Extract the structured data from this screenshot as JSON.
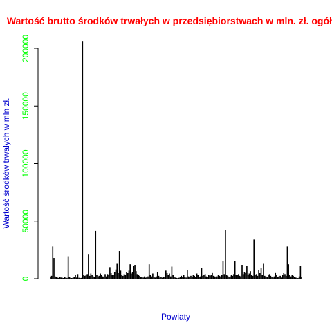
{
  "colors": {
    "title": "#ff0000",
    "axis_title": "#0000cd",
    "tick_labels": "#00ff00",
    "bars": "#000000"
  },
  "chart_data": {
    "type": "bar",
    "title": "Wartość brutto środków trwałych w przedsiębiorstwach w mln. zł. ogółem",
    "xlabel": "Powiaty",
    "ylabel": "Wartość środków trwałych w mln zł.",
    "ylim": [
      0,
      200000
    ],
    "yticks": [
      0,
      50000,
      100000,
      150000,
      200000
    ],
    "ytick_labels": [
      "0",
      "50000",
      "100000",
      "150000",
      "200000"
    ],
    "grid": false,
    "legend": "none",
    "series": [
      {
        "values": [
          1500,
          2500,
          28000,
          18000,
          2000,
          1200,
          900,
          700,
          1800,
          1000,
          800,
          600,
          1500,
          900,
          700,
          19500,
          1200,
          800,
          600,
          900,
          1500,
          3000,
          1000,
          4000,
          800,
          600,
          700,
          206500,
          3500,
          2500,
          3000,
          4000,
          21500,
          2500,
          4500,
          3000,
          2000,
          1500,
          41500,
          3500,
          2000,
          2500,
          4500,
          3000,
          2000,
          1500,
          4000,
          2000,
          4000,
          3000,
          10000,
          5000,
          3000,
          3500,
          6000,
          8000,
          13500,
          5000,
          24000,
          7000,
          3000,
          2500,
          4000,
          3500,
          6000,
          5000,
          7000,
          12500,
          4500,
          6000,
          11000,
          12000,
          6500,
          4000,
          3500,
          2500,
          1500,
          1200,
          1000,
          2000,
          900,
          1500,
          2000,
          12500,
          3000,
          2000,
          4500,
          1500,
          1000,
          2000,
          6000,
          2500,
          1000,
          1500,
          900,
          1200,
          1800,
          7000,
          5000,
          3000,
          4500,
          2000,
          10500,
          3000,
          1500,
          1000,
          700,
          500,
          800,
          1200,
          2500,
          1500,
          3000,
          1800,
          1000,
          7500,
          2000,
          1500,
          2500,
          1500,
          3500,
          2500,
          1800,
          4500,
          3000,
          1500,
          2000,
          9000,
          2500,
          3000,
          4000,
          2000,
          1500,
          3500,
          2500,
          3000,
          5500,
          2500,
          2000,
          1500,
          2000,
          3000,
          2500,
          2000,
          3500,
          15000,
          4000,
          42500,
          3000,
          2500,
          1500,
          2000,
          3000,
          2500,
          4000,
          15000,
          3500,
          3000,
          4000,
          2500,
          2000,
          12000,
          4000,
          6000,
          5000,
          11000,
          3500,
          4500,
          6500,
          3000,
          2500,
          34000,
          3500,
          4000,
          2500,
          7500,
          5000,
          9500,
          3500,
          13500,
          2500,
          2000,
          1500,
          3000,
          4000,
          2500,
          1500,
          1000,
          2000,
          5500,
          3000,
          1500,
          2000,
          2500,
          1000,
          3000,
          5000,
          4000,
          2500,
          28000,
          12500,
          3500,
          2000,
          3000,
          2500,
          1500,
          1000,
          800,
          600,
          2000,
          11000,
          1500
        ]
      }
    ]
  }
}
